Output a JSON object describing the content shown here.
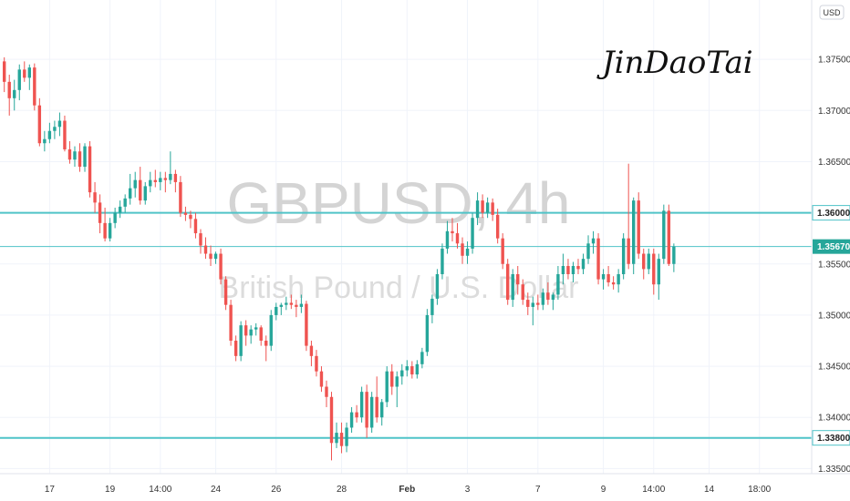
{
  "header": {
    "currency": "USD"
  },
  "signature": "JinDaoTai",
  "watermark": {
    "symbol": "GBPUSD, 4h",
    "description": "British Pound / U.S. Dollar"
  },
  "colors": {
    "up": "#26a69a",
    "down": "#ef5350",
    "level_line": "#4fc3c8",
    "grid": "#f0f3fa",
    "last_price_tag": "#26a69a"
  },
  "chart_data": {
    "type": "candlestick",
    "symbol": "GBPUSD",
    "timeframe": "4h",
    "ylim": [
      1.3345,
      1.3808
    ],
    "y_ticks": [
      "1.37500",
      "1.37000",
      "1.36500",
      "1.35500",
      "1.35000",
      "1.34500",
      "1.34000",
      "1.33500"
    ],
    "x_ticks": [
      {
        "label": "17",
        "bar": 9,
        "bold": false
      },
      {
        "label": "19",
        "bar": 21,
        "bold": false
      },
      {
        "label": "14:00",
        "bar": 31,
        "bold": false
      },
      {
        "label": "24",
        "bar": 42,
        "bold": false
      },
      {
        "label": "26",
        "bar": 54,
        "bold": false
      },
      {
        "label": "28",
        "bar": 67,
        "bold": false
      },
      {
        "label": "Feb",
        "bar": 80,
        "bold": true
      },
      {
        "label": "3",
        "bar": 92,
        "bold": false
      },
      {
        "label": "7",
        "bar": 106,
        "bold": false
      },
      {
        "label": "9",
        "bar": 119,
        "bold": false
      },
      {
        "label": "14:00",
        "bar": 129,
        "bold": false
      },
      {
        "label": "14",
        "bar": 140,
        "bold": false
      },
      {
        "label": "18:00",
        "bar": 150,
        "bold": false
      }
    ],
    "levels": [
      {
        "price": 1.36,
        "label": "1.36000"
      },
      {
        "price": 1.338,
        "label": "1.33800"
      }
    ],
    "last_price": {
      "price": 1.3567,
      "label": "1.35670"
    },
    "candles": [
      {
        "o": 1.3748,
        "h": 1.3752,
        "l": 1.3718,
        "c": 1.3728
      },
      {
        "o": 1.3728,
        "h": 1.3735,
        "l": 1.3695,
        "c": 1.3712
      },
      {
        "o": 1.3712,
        "h": 1.373,
        "l": 1.37,
        "c": 1.372
      },
      {
        "o": 1.372,
        "h": 1.3745,
        "l": 1.371,
        "c": 1.374
      },
      {
        "o": 1.374,
        "h": 1.3748,
        "l": 1.3728,
        "c": 1.3732
      },
      {
        "o": 1.3732,
        "h": 1.3745,
        "l": 1.372,
        "c": 1.3742
      },
      {
        "o": 1.3742,
        "h": 1.3746,
        "l": 1.37,
        "c": 1.3705
      },
      {
        "o": 1.3705,
        "h": 1.3712,
        "l": 1.3665,
        "c": 1.3668
      },
      {
        "o": 1.3668,
        "h": 1.368,
        "l": 1.366,
        "c": 1.3672
      },
      {
        "o": 1.3672,
        "h": 1.3688,
        "l": 1.3668,
        "c": 1.368
      },
      {
        "o": 1.368,
        "h": 1.369,
        "l": 1.3672,
        "c": 1.3684
      },
      {
        "o": 1.3684,
        "h": 1.3698,
        "l": 1.3675,
        "c": 1.369
      },
      {
        "o": 1.369,
        "h": 1.3695,
        "l": 1.366,
        "c": 1.3662
      },
      {
        "o": 1.3662,
        "h": 1.367,
        "l": 1.3648,
        "c": 1.3652
      },
      {
        "o": 1.3652,
        "h": 1.3665,
        "l": 1.3645,
        "c": 1.366
      },
      {
        "o": 1.366,
        "h": 1.3668,
        "l": 1.364,
        "c": 1.3645
      },
      {
        "o": 1.3645,
        "h": 1.3668,
        "l": 1.364,
        "c": 1.3665
      },
      {
        "o": 1.3665,
        "h": 1.367,
        "l": 1.3615,
        "c": 1.362
      },
      {
        "o": 1.362,
        "h": 1.363,
        "l": 1.36,
        "c": 1.361
      },
      {
        "o": 1.361,
        "h": 1.3618,
        "l": 1.358,
        "c": 1.359
      },
      {
        "o": 1.359,
        "h": 1.3605,
        "l": 1.3572,
        "c": 1.3575
      },
      {
        "o": 1.3575,
        "h": 1.3595,
        "l": 1.3572,
        "c": 1.359
      },
      {
        "o": 1.359,
        "h": 1.3605,
        "l": 1.3585,
        "c": 1.36
      },
      {
        "o": 1.36,
        "h": 1.3612,
        "l": 1.3595,
        "c": 1.3606
      },
      {
        "o": 1.3606,
        "h": 1.3618,
        "l": 1.36,
        "c": 1.3614
      },
      {
        "o": 1.3614,
        "h": 1.3638,
        "l": 1.3608,
        "c": 1.3624
      },
      {
        "o": 1.3624,
        "h": 1.364,
        "l": 1.3615,
        "c": 1.3632
      },
      {
        "o": 1.3632,
        "h": 1.3645,
        "l": 1.3608,
        "c": 1.3612
      },
      {
        "o": 1.3612,
        "h": 1.363,
        "l": 1.3608,
        "c": 1.3626
      },
      {
        "o": 1.3626,
        "h": 1.364,
        "l": 1.362,
        "c": 1.3632
      },
      {
        "o": 1.3632,
        "h": 1.3642,
        "l": 1.3625,
        "c": 1.363
      },
      {
        "o": 1.363,
        "h": 1.364,
        "l": 1.3622,
        "c": 1.3634
      },
      {
        "o": 1.3634,
        "h": 1.364,
        "l": 1.362,
        "c": 1.3632
      },
      {
        "o": 1.3632,
        "h": 1.366,
        "l": 1.3628,
        "c": 1.3638
      },
      {
        "o": 1.3638,
        "h": 1.3642,
        "l": 1.362,
        "c": 1.363
      },
      {
        "o": 1.363,
        "h": 1.3636,
        "l": 1.3596,
        "c": 1.36
      },
      {
        "o": 1.36,
        "h": 1.3606,
        "l": 1.3592,
        "c": 1.3598
      },
      {
        "o": 1.3598,
        "h": 1.3602,
        "l": 1.3585,
        "c": 1.3594
      },
      {
        "o": 1.3594,
        "h": 1.36,
        "l": 1.3575,
        "c": 1.358
      },
      {
        "o": 1.358,
        "h": 1.3584,
        "l": 1.356,
        "c": 1.3568
      },
      {
        "o": 1.3568,
        "h": 1.3576,
        "l": 1.3555,
        "c": 1.356
      },
      {
        "o": 1.356,
        "h": 1.3568,
        "l": 1.3548,
        "c": 1.3555
      },
      {
        "o": 1.3555,
        "h": 1.3562,
        "l": 1.355,
        "c": 1.356
      },
      {
        "o": 1.356,
        "h": 1.3565,
        "l": 1.353,
        "c": 1.3535
      },
      {
        "o": 1.3535,
        "h": 1.3538,
        "l": 1.3505,
        "c": 1.351
      },
      {
        "o": 1.351,
        "h": 1.3515,
        "l": 1.347,
        "c": 1.3475
      },
      {
        "o": 1.3475,
        "h": 1.348,
        "l": 1.3455,
        "c": 1.346
      },
      {
        "o": 1.346,
        "h": 1.3494,
        "l": 1.3455,
        "c": 1.349
      },
      {
        "o": 1.349,
        "h": 1.3495,
        "l": 1.347,
        "c": 1.348
      },
      {
        "o": 1.348,
        "h": 1.349,
        "l": 1.3472,
        "c": 1.3486
      },
      {
        "o": 1.3486,
        "h": 1.3492,
        "l": 1.348,
        "c": 1.3488
      },
      {
        "o": 1.3488,
        "h": 1.349,
        "l": 1.347,
        "c": 1.3475
      },
      {
        "o": 1.3475,
        "h": 1.348,
        "l": 1.3455,
        "c": 1.347
      },
      {
        "o": 1.347,
        "h": 1.3505,
        "l": 1.3465,
        "c": 1.35
      },
      {
        "o": 1.35,
        "h": 1.3512,
        "l": 1.3495,
        "c": 1.3508
      },
      {
        "o": 1.3508,
        "h": 1.3512,
        "l": 1.35,
        "c": 1.351
      },
      {
        "o": 1.351,
        "h": 1.3518,
        "l": 1.3505,
        "c": 1.3512
      },
      {
        "o": 1.3512,
        "h": 1.352,
        "l": 1.3506,
        "c": 1.351
      },
      {
        "o": 1.351,
        "h": 1.3515,
        "l": 1.3498,
        "c": 1.3508
      },
      {
        "o": 1.3508,
        "h": 1.352,
        "l": 1.3502,
        "c": 1.3511
      },
      {
        "o": 1.3511,
        "h": 1.3514,
        "l": 1.3465,
        "c": 1.347
      },
      {
        "o": 1.347,
        "h": 1.3475,
        "l": 1.345,
        "c": 1.346
      },
      {
        "o": 1.346,
        "h": 1.3466,
        "l": 1.344,
        "c": 1.3445
      },
      {
        "o": 1.3445,
        "h": 1.345,
        "l": 1.3425,
        "c": 1.343
      },
      {
        "o": 1.343,
        "h": 1.3436,
        "l": 1.341,
        "c": 1.342
      },
      {
        "o": 1.342,
        "h": 1.3425,
        "l": 1.3358,
        "c": 1.3375
      },
      {
        "o": 1.3375,
        "h": 1.3395,
        "l": 1.337,
        "c": 1.3385
      },
      {
        "o": 1.3385,
        "h": 1.3395,
        "l": 1.3365,
        "c": 1.3372
      },
      {
        "o": 1.3372,
        "h": 1.3395,
        "l": 1.3366,
        "c": 1.339
      },
      {
        "o": 1.339,
        "h": 1.341,
        "l": 1.3385,
        "c": 1.3405
      },
      {
        "o": 1.3405,
        "h": 1.3412,
        "l": 1.3395,
        "c": 1.34
      },
      {
        "o": 1.34,
        "h": 1.343,
        "l": 1.3395,
        "c": 1.3425
      },
      {
        "o": 1.3425,
        "h": 1.3432,
        "l": 1.338,
        "c": 1.339
      },
      {
        "o": 1.339,
        "h": 1.3425,
        "l": 1.3385,
        "c": 1.342
      },
      {
        "o": 1.342,
        "h": 1.344,
        "l": 1.3395,
        "c": 1.34
      },
      {
        "o": 1.34,
        "h": 1.3418,
        "l": 1.3392,
        "c": 1.3415
      },
      {
        "o": 1.3415,
        "h": 1.345,
        "l": 1.341,
        "c": 1.3445
      },
      {
        "o": 1.3445,
        "h": 1.3452,
        "l": 1.3422,
        "c": 1.343
      },
      {
        "o": 1.343,
        "h": 1.3445,
        "l": 1.341,
        "c": 1.344
      },
      {
        "o": 1.344,
        "h": 1.3452,
        "l": 1.3432,
        "c": 1.3446
      },
      {
        "o": 1.3446,
        "h": 1.3456,
        "l": 1.344,
        "c": 1.345
      },
      {
        "o": 1.345,
        "h": 1.3455,
        "l": 1.3438,
        "c": 1.3442
      },
      {
        "o": 1.3442,
        "h": 1.3456,
        "l": 1.3438,
        "c": 1.3452
      },
      {
        "o": 1.3452,
        "h": 1.3468,
        "l": 1.3448,
        "c": 1.3464
      },
      {
        "o": 1.3464,
        "h": 1.3506,
        "l": 1.346,
        "c": 1.35
      },
      {
        "o": 1.35,
        "h": 1.352,
        "l": 1.3492,
        "c": 1.3516
      },
      {
        "o": 1.3516,
        "h": 1.3545,
        "l": 1.351,
        "c": 1.354
      },
      {
        "o": 1.354,
        "h": 1.357,
        "l": 1.3535,
        "c": 1.3565
      },
      {
        "o": 1.3565,
        "h": 1.3592,
        "l": 1.356,
        "c": 1.3582
      },
      {
        "o": 1.3582,
        "h": 1.3595,
        "l": 1.3572,
        "c": 1.358
      },
      {
        "o": 1.358,
        "h": 1.359,
        "l": 1.3565,
        "c": 1.357
      },
      {
        "o": 1.357,
        "h": 1.3576,
        "l": 1.355,
        "c": 1.3558
      },
      {
        "o": 1.3558,
        "h": 1.3572,
        "l": 1.355,
        "c": 1.3565
      },
      {
        "o": 1.3565,
        "h": 1.36,
        "l": 1.356,
        "c": 1.3595
      },
      {
        "o": 1.3595,
        "h": 1.362,
        "l": 1.3588,
        "c": 1.3612
      },
      {
        "o": 1.3612,
        "h": 1.3618,
        "l": 1.3595,
        "c": 1.36
      },
      {
        "o": 1.36,
        "h": 1.3615,
        "l": 1.3595,
        "c": 1.361
      },
      {
        "o": 1.361,
        "h": 1.3614,
        "l": 1.3592,
        "c": 1.3598
      },
      {
        "o": 1.3598,
        "h": 1.3604,
        "l": 1.357,
        "c": 1.3575
      },
      {
        "o": 1.3575,
        "h": 1.358,
        "l": 1.3545,
        "c": 1.355
      },
      {
        "o": 1.355,
        "h": 1.3555,
        "l": 1.351,
        "c": 1.3515
      },
      {
        "o": 1.3515,
        "h": 1.3545,
        "l": 1.3508,
        "c": 1.354
      },
      {
        "o": 1.354,
        "h": 1.3548,
        "l": 1.352,
        "c": 1.353
      },
      {
        "o": 1.353,
        "h": 1.3535,
        "l": 1.351,
        "c": 1.3515
      },
      {
        "o": 1.3515,
        "h": 1.3522,
        "l": 1.35,
        "c": 1.3508
      },
      {
        "o": 1.3508,
        "h": 1.3518,
        "l": 1.349,
        "c": 1.3512
      },
      {
        "o": 1.3512,
        "h": 1.352,
        "l": 1.3505,
        "c": 1.351
      },
      {
        "o": 1.351,
        "h": 1.3526,
        "l": 1.3505,
        "c": 1.3522
      },
      {
        "o": 1.3522,
        "h": 1.3532,
        "l": 1.351,
        "c": 1.3515
      },
      {
        "o": 1.3515,
        "h": 1.3522,
        "l": 1.3505,
        "c": 1.352
      },
      {
        "o": 1.352,
        "h": 1.3548,
        "l": 1.3515,
        "c": 1.354
      },
      {
        "o": 1.354,
        "h": 1.356,
        "l": 1.353,
        "c": 1.3548
      },
      {
        "o": 1.3548,
        "h": 1.3555,
        "l": 1.3535,
        "c": 1.354
      },
      {
        "o": 1.354,
        "h": 1.3552,
        "l": 1.3532,
        "c": 1.3548
      },
      {
        "o": 1.3548,
        "h": 1.3555,
        "l": 1.354,
        "c": 1.3545
      },
      {
        "o": 1.3545,
        "h": 1.356,
        "l": 1.354,
        "c": 1.3555
      },
      {
        "o": 1.3555,
        "h": 1.3578,
        "l": 1.355,
        "c": 1.357
      },
      {
        "o": 1.357,
        "h": 1.3582,
        "l": 1.356,
        "c": 1.3575
      },
      {
        "o": 1.3575,
        "h": 1.358,
        "l": 1.353,
        "c": 1.3535
      },
      {
        "o": 1.3535,
        "h": 1.3545,
        "l": 1.3525,
        "c": 1.354
      },
      {
        "o": 1.354,
        "h": 1.3548,
        "l": 1.3528,
        "c": 1.3532
      },
      {
        "o": 1.3532,
        "h": 1.3538,
        "l": 1.3525,
        "c": 1.353
      },
      {
        "o": 1.353,
        "h": 1.3545,
        "l": 1.3522,
        "c": 1.354
      },
      {
        "o": 1.354,
        "h": 1.358,
        "l": 1.3535,
        "c": 1.3575
      },
      {
        "o": 1.3575,
        "h": 1.3648,
        "l": 1.3545,
        "c": 1.355
      },
      {
        "o": 1.355,
        "h": 1.3615,
        "l": 1.354,
        "c": 1.3612
      },
      {
        "o": 1.3612,
        "h": 1.362,
        "l": 1.3555,
        "c": 1.356
      },
      {
        "o": 1.356,
        "h": 1.3565,
        "l": 1.3535,
        "c": 1.3545
      },
      {
        "o": 1.3545,
        "h": 1.3565,
        "l": 1.354,
        "c": 1.356
      },
      {
        "o": 1.356,
        "h": 1.3565,
        "l": 1.352,
        "c": 1.353
      },
      {
        "o": 1.353,
        "h": 1.356,
        "l": 1.3515,
        "c": 1.3555
      },
      {
        "o": 1.3555,
        "h": 1.3608,
        "l": 1.355,
        "c": 1.3602
      },
      {
        "o": 1.3602,
        "h": 1.3608,
        "l": 1.3548,
        "c": 1.355
      },
      {
        "o": 1.355,
        "h": 1.357,
        "l": 1.3542,
        "c": 1.3567
      }
    ]
  }
}
